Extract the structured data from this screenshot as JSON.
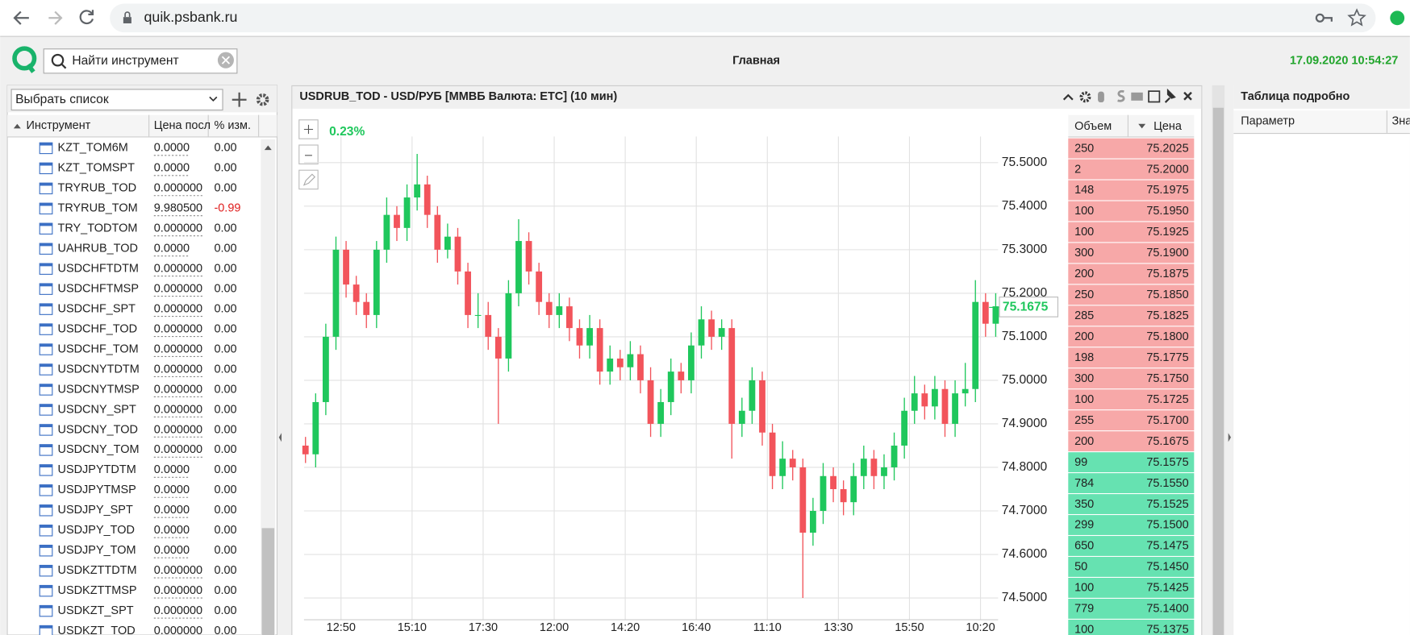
{
  "browser": {
    "url": "quik.psbank.ru"
  },
  "header": {
    "search_placeholder": "Найти инструмент",
    "title": "Главная",
    "datetime": "17.09.2020 10:54:27"
  },
  "instruments": {
    "list_placeholder": "Выбрать список",
    "columns": [
      "Инструмент",
      "Цена посл",
      "% изм."
    ],
    "rows": [
      [
        "KZT_TOM6M",
        "0.0000",
        "0.00"
      ],
      [
        "KZT_TOMSPT",
        "0.0000",
        "0.00"
      ],
      [
        "TRYRUB_TOD",
        "0.000000",
        "0.00"
      ],
      [
        "TRYRUB_TOM",
        "9.980500",
        "-0.99"
      ],
      [
        "TRY_TODTOM",
        "0.000000",
        "0.00"
      ],
      [
        "UAHRUB_TOD",
        "0.0000",
        "0.00"
      ],
      [
        "USDCHFTDTM",
        "0.000000",
        "0.00"
      ],
      [
        "USDCHFTMSP",
        "0.000000",
        "0.00"
      ],
      [
        "USDCHF_SPT",
        "0.000000",
        "0.00"
      ],
      [
        "USDCHF_TOD",
        "0.000000",
        "0.00"
      ],
      [
        "USDCHF_TOM",
        "0.000000",
        "0.00"
      ],
      [
        "USDCNYTDTM",
        "0.000000",
        "0.00"
      ],
      [
        "USDCNYTMSP",
        "0.000000",
        "0.00"
      ],
      [
        "USDCNY_SPT",
        "0.000000",
        "0.00"
      ],
      [
        "USDCNY_TOD",
        "0.000000",
        "0.00"
      ],
      [
        "USDCNY_TOM",
        "0.000000",
        "0.00"
      ],
      [
        "USDJPYTDTM",
        "0.0000",
        "0.00"
      ],
      [
        "USDJPYTMSP",
        "0.0000",
        "0.00"
      ],
      [
        "USDJPY_SPT",
        "0.0000",
        "0.00"
      ],
      [
        "USDJPY_TOD",
        "0.0000",
        "0.00"
      ],
      [
        "USDJPY_TOM",
        "0.0000",
        "0.00"
      ],
      [
        "USDKZTTDTM",
        "0.000000",
        "0.00"
      ],
      [
        "USDKZTTMSP",
        "0.000000",
        "0.00"
      ],
      [
        "USDKZT_SPT",
        "0.000000",
        "0.00"
      ],
      [
        "USDKZT_TOD",
        "0.000000",
        "0.00"
      ]
    ]
  },
  "chart_panel": {
    "title": "USDRUB_TOD - USD/РУБ [ММВБ Валюта: ЕТС] (10 мин)"
  },
  "chart_data": {
    "type": "candlestick",
    "change_label": "0.23%",
    "last_price": {
      "value": 75.1675,
      "label": "75.1675"
    },
    "up_color": "#1fc75c",
    "down_color": "#f2545b",
    "grid": true,
    "open": [
      74.85,
      74.83,
      74.95,
      75.1,
      75.3,
      75.22,
      75.18,
      75.15,
      75.3,
      75.38,
      75.35,
      75.42,
      75.45,
      75.38,
      75.3,
      75.33,
      75.25,
      75.15,
      75.15,
      75.1,
      75.05,
      75.2,
      75.32,
      75.25,
      75.18,
      75.15,
      75.17,
      75.12,
      75.08,
      75.12,
      75.02,
      75.05,
      75.03,
      75.06,
      75.0,
      74.9,
      74.95,
      75.02,
      75.0,
      75.08,
      75.14,
      75.1,
      75.12,
      74.9,
      74.93,
      75.0,
      74.88,
      74.78,
      74.82,
      74.8,
      74.65,
      74.7,
      74.78,
      74.75,
      74.72,
      74.78,
      74.82,
      74.78,
      74.8,
      74.85,
      74.93,
      74.97,
      74.94,
      74.98,
      74.9,
      74.97,
      74.98,
      75.18,
      75.13
    ],
    "high": [
      74.87,
      74.97,
      75.13,
      75.33,
      75.32,
      75.24,
      75.2,
      75.32,
      75.42,
      75.4,
      75.45,
      75.52,
      75.47,
      75.4,
      75.36,
      75.35,
      75.27,
      75.2,
      75.18,
      75.12,
      75.23,
      75.37,
      75.34,
      75.27,
      75.2,
      75.2,
      75.19,
      75.14,
      75.15,
      75.14,
      75.08,
      75.07,
      75.09,
      75.08,
      75.03,
      74.98,
      75.05,
      75.04,
      75.11,
      75.17,
      75.16,
      75.14,
      75.14,
      74.96,
      75.03,
      75.02,
      74.9,
      74.86,
      74.84,
      74.82,
      74.73,
      74.81,
      74.8,
      74.77,
      74.81,
      74.85,
      74.84,
      74.83,
      74.88,
      74.96,
      75.01,
      74.99,
      75.01,
      75.0,
      75.0,
      75.04,
      75.23,
      75.2,
      75.2
    ],
    "low": [
      74.81,
      74.8,
      74.92,
      75.07,
      75.19,
      75.15,
      75.12,
      75.12,
      75.27,
      75.32,
      75.32,
      75.39,
      75.35,
      75.27,
      75.28,
      75.22,
      75.12,
      75.12,
      75.07,
      74.9,
      75.02,
      75.17,
      75.22,
      75.15,
      75.12,
      75.12,
      75.09,
      75.05,
      75.05,
      74.99,
      74.99,
      75.0,
      75.0,
      74.97,
      74.87,
      74.87,
      74.92,
      74.97,
      74.97,
      75.05,
      75.07,
      75.07,
      74.82,
      74.87,
      74.9,
      74.85,
      74.75,
      74.75,
      74.77,
      74.5,
      74.62,
      74.67,
      74.72,
      74.69,
      74.69,
      74.75,
      74.75,
      74.75,
      74.77,
      74.82,
      74.9,
      74.91,
      74.91,
      74.87,
      74.87,
      74.94,
      74.95,
      75.1,
      75.1
    ],
    "close": [
      74.83,
      74.95,
      75.1,
      75.3,
      75.22,
      75.18,
      75.15,
      75.3,
      75.38,
      75.35,
      75.42,
      75.45,
      75.38,
      75.3,
      75.33,
      75.25,
      75.15,
      75.15,
      75.1,
      75.05,
      75.2,
      75.32,
      75.25,
      75.18,
      75.15,
      75.17,
      75.12,
      75.08,
      75.12,
      75.02,
      75.05,
      75.03,
      75.06,
      75.0,
      74.9,
      74.95,
      75.02,
      75.0,
      75.08,
      75.14,
      75.1,
      75.12,
      74.9,
      74.93,
      75.0,
      74.88,
      74.78,
      74.82,
      74.8,
      74.65,
      74.7,
      74.78,
      74.75,
      74.72,
      74.78,
      74.82,
      74.78,
      74.8,
      74.85,
      74.93,
      74.97,
      74.94,
      74.98,
      74.9,
      74.97,
      74.98,
      75.18,
      75.13,
      75.17
    ],
    "xlim": [
      -0.5,
      68.5
    ],
    "xticks": [
      {
        "value": 3.5,
        "label": "12:50"
      },
      {
        "value": 10.5,
        "label": "15:10"
      },
      {
        "value": 17.5,
        "label": "17:30"
      },
      {
        "value": 24.5,
        "label": "12:00"
      },
      {
        "value": 31.5,
        "label": "14:20"
      },
      {
        "value": 38.5,
        "label": "16:40"
      },
      {
        "value": 45.5,
        "label": "11:10"
      },
      {
        "value": 52.5,
        "label": "13:30"
      },
      {
        "value": 59.5,
        "label": "15:50"
      },
      {
        "value": 66.5,
        "label": "10:20"
      }
    ],
    "ylim": [
      74.45,
      75.56
    ],
    "yticks": [
      {
        "value": 74.5,
        "label": "74.5000"
      },
      {
        "value": 74.6,
        "label": "74.6000"
      },
      {
        "value": 74.7,
        "label": "74.7000"
      },
      {
        "value": 74.8,
        "label": "74.8000"
      },
      {
        "value": 74.9,
        "label": "74.9000"
      },
      {
        "value": 75.0,
        "label": "75.0000"
      },
      {
        "value": 75.1,
        "label": "75.1000"
      },
      {
        "value": 75.2,
        "label": "75.2000"
      },
      {
        "value": 75.3,
        "label": "75.3000"
      },
      {
        "value": 75.4,
        "label": "75.4000"
      },
      {
        "value": 75.5,
        "label": "75.5000"
      }
    ]
  },
  "order_book": {
    "columns": [
      "Объем",
      "Цена"
    ],
    "asks": [
      [
        "250",
        "75.2025"
      ],
      [
        "2",
        "75.2000"
      ],
      [
        "148",
        "75.1975"
      ],
      [
        "100",
        "75.1950"
      ],
      [
        "100",
        "75.1925"
      ],
      [
        "300",
        "75.1900"
      ],
      [
        "200",
        "75.1875"
      ],
      [
        "250",
        "75.1850"
      ],
      [
        "285",
        "75.1825"
      ],
      [
        "200",
        "75.1800"
      ],
      [
        "198",
        "75.1775"
      ],
      [
        "300",
        "75.1750"
      ],
      [
        "100",
        "75.1725"
      ],
      [
        "255",
        "75.1700"
      ],
      [
        "200",
        "75.1675"
      ]
    ],
    "bids": [
      [
        "99",
        "75.1575"
      ],
      [
        "784",
        "75.1550"
      ],
      [
        "350",
        "75.1525"
      ],
      [
        "299",
        "75.1500"
      ],
      [
        "650",
        "75.1475"
      ],
      [
        "50",
        "75.1450"
      ],
      [
        "100",
        "75.1425"
      ],
      [
        "779",
        "75.1400"
      ],
      [
        "100",
        "75.1375"
      ]
    ]
  },
  "details": {
    "title": "Таблица подробно",
    "columns": [
      "Параметр",
      "Зна"
    ]
  }
}
